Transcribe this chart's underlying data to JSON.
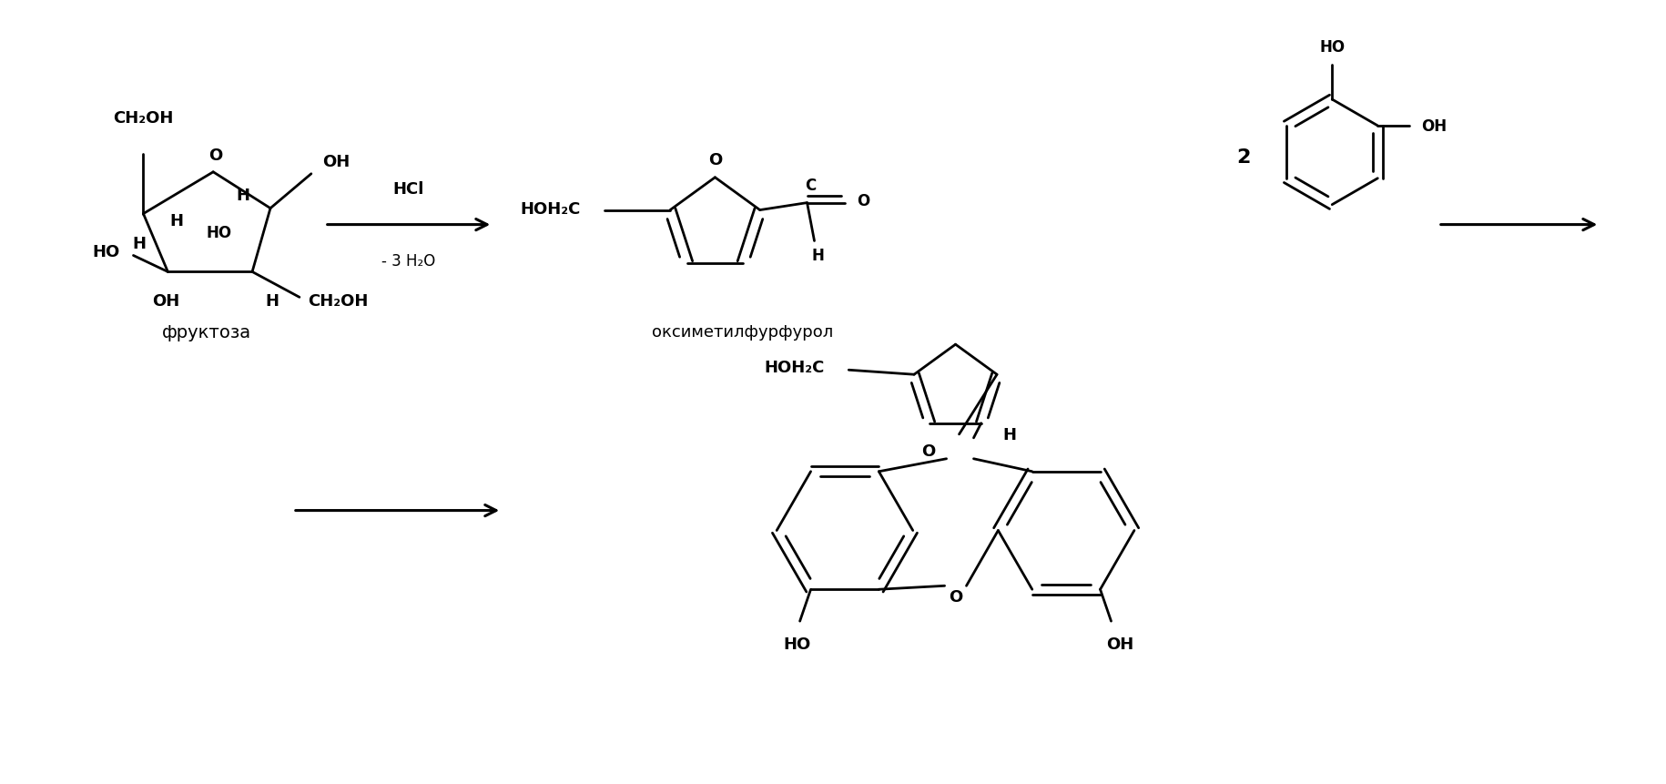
{
  "bg_color": "#ffffff",
  "figsize": [
    18.3,
    8.62
  ],
  "dpi": 100,
  "fructose_label": "фруктоза",
  "hmf_label": "оксиметилфурфурол",
  "hcl_label": "HCl",
  "water_label": "- 3 H₂O",
  "coeff_2": "2"
}
